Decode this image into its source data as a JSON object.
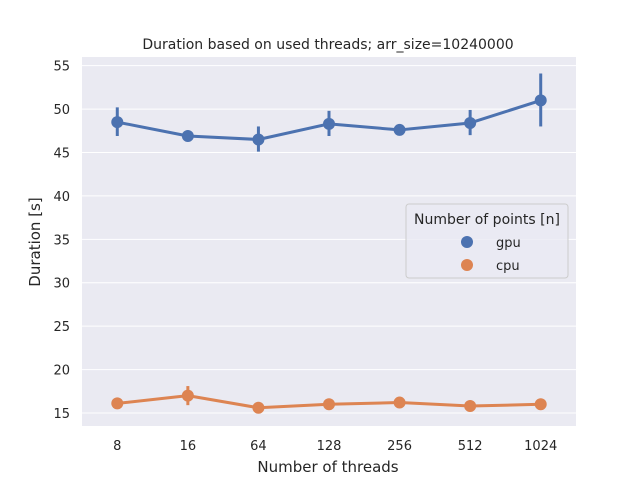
{
  "chart_data": {
    "type": "line",
    "title": "Duration based on used threads; arr_size=10240000",
    "xlabel": "Number of threads",
    "ylabel": "Duration [s]",
    "categories": [
      "8",
      "16",
      "64",
      "128",
      "256",
      "512",
      "1024"
    ],
    "ylim": [
      13.5,
      56
    ],
    "yticks": [
      15,
      20,
      25,
      30,
      35,
      40,
      45,
      50,
      55
    ],
    "grid": true,
    "legend": {
      "title": "Number of points [n]",
      "placement": "center-right"
    },
    "series": [
      {
        "name": "gpu",
        "color": "#4c72b0",
        "values": [
          48.5,
          46.9,
          46.5,
          48.3,
          47.6,
          48.4,
          51.0
        ],
        "err_low": [
          46.9,
          46.5,
          45.1,
          46.9,
          47.3,
          47.0,
          48.0
        ],
        "err_high": [
          50.2,
          47.4,
          48.0,
          49.8,
          47.9,
          49.9,
          54.1
        ]
      },
      {
        "name": "cpu",
        "color": "#dd8452",
        "values": [
          16.1,
          17.0,
          15.6,
          16.0,
          16.2,
          15.8,
          16.0
        ],
        "err_low": [
          15.9,
          15.9,
          15.4,
          15.8,
          15.8,
          15.6,
          15.8
        ],
        "err_high": [
          16.3,
          18.1,
          15.8,
          16.2,
          16.7,
          16.0,
          16.2
        ]
      }
    ]
  }
}
